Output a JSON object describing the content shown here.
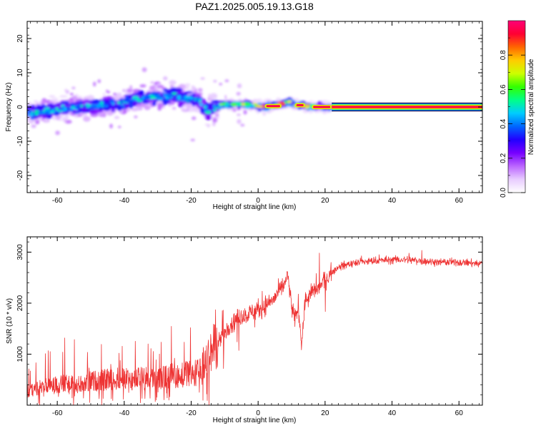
{
  "title": "PAZ1.2025.005.19.13.G18",
  "chart_data": [
    {
      "type": "heatmap",
      "xlabel": "Height of straight line (km)",
      "ylabel": "Frequency (Hz)",
      "xlim": [
        -69,
        67
      ],
      "ylim": [
        -25,
        25
      ],
      "xticks": [
        -60,
        -40,
        -20,
        0,
        20,
        40,
        60
      ],
      "yticks": [
        -20,
        -10,
        0,
        10,
        20
      ],
      "colorbar": {
        "label": "Normalized spectral amplitude",
        "range": [
          0,
          1
        ],
        "ticks": [
          0.0,
          0.2,
          0.4,
          0.6,
          0.8
        ],
        "tick_labels": [
          "0.0",
          "0.2",
          "0.4",
          "0.6",
          "0.8"
        ],
        "colormap": [
          "#ffffff",
          "#e8ccff",
          "#bb66ff",
          "#7700ff",
          "#2200ff",
          "#0066ff",
          "#00ccff",
          "#00ff88",
          "#33ff00",
          "#ccff00",
          "#ffcc00",
          "#ff6600",
          "#ff0033",
          "#ff0077"
        ]
      },
      "tone_band": {
        "x_start": 22,
        "x_end": 67,
        "y_center": 0,
        "half_width": 1.2
      },
      "ridge": [
        [
          -69,
          -1.5
        ],
        [
          -66,
          -1.8
        ],
        [
          -63,
          -1.2
        ],
        [
          -60,
          -0.8
        ],
        [
          -57,
          -0.3
        ],
        [
          -54,
          0.0
        ],
        [
          -51,
          0.3
        ],
        [
          -48,
          0.1
        ],
        [
          -45,
          0.6
        ],
        [
          -42,
          1.0
        ],
        [
          -39,
          1.8
        ],
        [
          -36,
          2.5
        ],
        [
          -33,
          2.8
        ],
        [
          -30,
          2.9
        ],
        [
          -28,
          2.8
        ],
        [
          -26,
          3.5
        ],
        [
          -23,
          2.8
        ],
        [
          -20,
          2.4
        ],
        [
          -17,
          1.5
        ],
        [
          -15,
          -1.5
        ],
        [
          -13,
          0.0
        ],
        [
          -11,
          0.8
        ],
        [
          -8,
          0.9
        ],
        [
          -5,
          0.8
        ],
        [
          -2,
          0.6
        ],
        [
          0,
          0.3
        ],
        [
          2,
          0.1
        ],
        [
          5,
          0.3
        ],
        [
          7,
          1.0
        ],
        [
          9,
          1.6
        ],
        [
          11,
          0.6
        ],
        [
          13,
          0.5
        ],
        [
          15,
          0.2
        ],
        [
          18,
          0.0
        ],
        [
          22,
          0.0
        ]
      ]
    },
    {
      "type": "line",
      "xlabel": "Height of straight line (km)",
      "ylabel": "SNR (10 * v/v)",
      "xlim": [
        -69,
        67
      ],
      "ylim": [
        0,
        3300
      ],
      "xticks": [
        -60,
        -40,
        -20,
        0,
        20,
        40,
        60
      ],
      "yticks": [
        1000,
        2000,
        3000
      ],
      "series": [
        {
          "color": "#ee3333",
          "trend": [
            [
              -69,
              230
            ],
            [
              -66,
              330
            ],
            [
              -62,
              360
            ],
            [
              -58,
              400
            ],
            [
              -54,
              380
            ],
            [
              -50,
              450
            ],
            [
              -46,
              470
            ],
            [
              -42,
              500
            ],
            [
              -38,
              480
            ],
            [
              -34,
              510
            ],
            [
              -30,
              500
            ],
            [
              -26,
              550
            ],
            [
              -22,
              580
            ],
            [
              -20,
              580
            ],
            [
              -17,
              620
            ],
            [
              -15,
              900
            ],
            [
              -13,
              1100
            ],
            [
              -11,
              1300
            ],
            [
              -9,
              1550
            ],
            [
              -7,
              1650
            ],
            [
              -5,
              1750
            ],
            [
              -3,
              1780
            ],
            [
              -1,
              1850
            ],
            [
              1,
              1900
            ],
            [
              3,
              2000
            ],
            [
              5,
              2100
            ],
            [
              7,
              2300
            ],
            [
              8,
              2400
            ],
            [
              9,
              2500
            ],
            [
              10,
              1900
            ],
            [
              11,
              1700
            ],
            [
              12,
              1900
            ],
            [
              13,
              1200
            ],
            [
              14,
              2000
            ],
            [
              16,
              2200
            ],
            [
              18,
              2300
            ],
            [
              20,
              2450
            ],
            [
              22,
              2600
            ],
            [
              24,
              2700
            ],
            [
              26,
              2750
            ],
            [
              30,
              2800
            ],
            [
              35,
              2830
            ],
            [
              40,
              2850
            ],
            [
              45,
              2850
            ],
            [
              50,
              2820
            ],
            [
              55,
              2800
            ],
            [
              60,
              2800
            ],
            [
              65,
              2780
            ],
            [
              67,
              2780
            ]
          ]
        }
      ]
    }
  ]
}
